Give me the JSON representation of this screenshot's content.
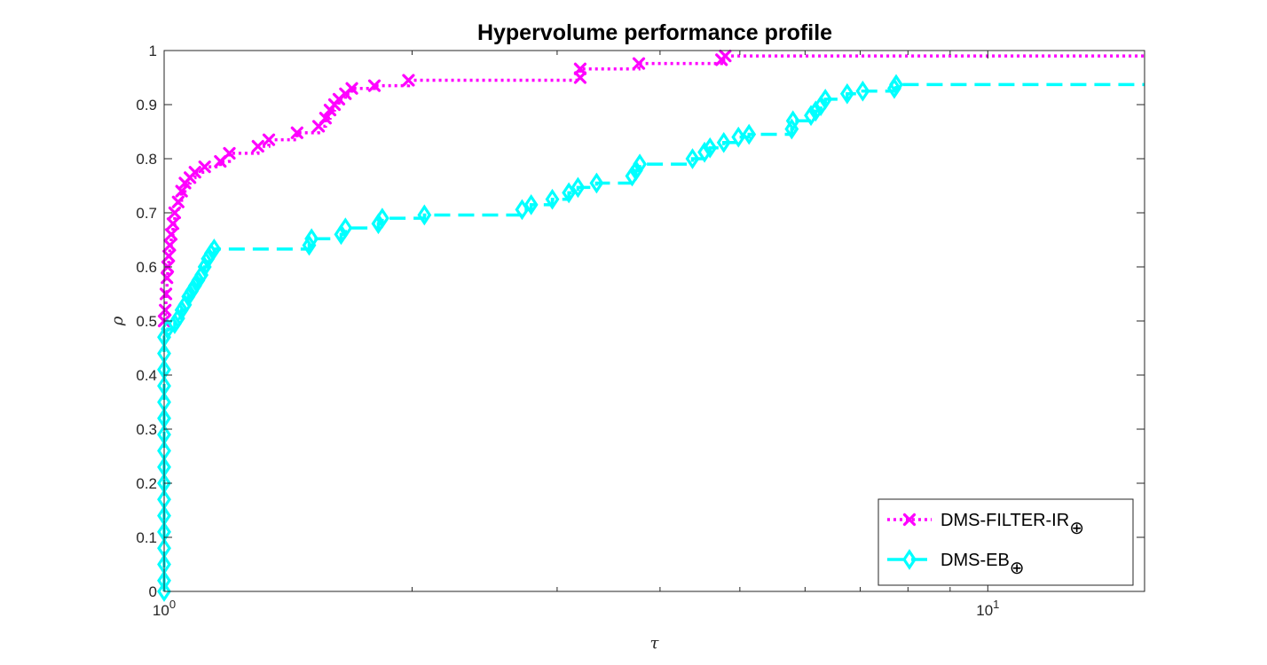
{
  "chart_data": {
    "type": "line",
    "title": "Hypervolume performance profile",
    "xlabel": "τ",
    "ylabel": "ρ",
    "x_scale": "log",
    "xlim": [
      1,
      15.5
    ],
    "ylim": [
      0,
      1
    ],
    "x_ticks": [
      {
        "value": 1,
        "base": "10",
        "exp": "0"
      },
      {
        "value": 10,
        "base": "10",
        "exp": "1"
      }
    ],
    "y_ticks": [
      0,
      0.1,
      0.2,
      0.3,
      0.4,
      0.5,
      0.6,
      0.7,
      0.8,
      0.9,
      1
    ],
    "y_tick_labels": [
      "0",
      "0.1",
      "0.2",
      "0.3",
      "0.4",
      "0.5",
      "0.6",
      "0.7",
      "0.8",
      "0.9",
      "1"
    ],
    "grid": false,
    "legend_position": "bottom-right",
    "series": [
      {
        "name": "DMS-FILTER-IR",
        "legend_subscript": "⊕",
        "color": "#FF00FF",
        "line_style": "dotted",
        "marker": "x",
        "points": [
          [
            1.0,
            0.5
          ],
          [
            1.003,
            0.52
          ],
          [
            1.005,
            0.55
          ],
          [
            1.008,
            0.58
          ],
          [
            1.01,
            0.6
          ],
          [
            1.013,
            0.62
          ],
          [
            1.016,
            0.64
          ],
          [
            1.02,
            0.66
          ],
          [
            1.025,
            0.68
          ],
          [
            1.03,
            0.7
          ],
          [
            1.04,
            0.72
          ],
          [
            1.05,
            0.74
          ],
          [
            1.06,
            0.755
          ],
          [
            1.075,
            0.765
          ],
          [
            1.09,
            0.775
          ],
          [
            1.12,
            0.785
          ],
          [
            1.17,
            0.795
          ],
          [
            1.2,
            0.81
          ],
          [
            1.3,
            0.823
          ],
          [
            1.34,
            0.835
          ],
          [
            1.45,
            0.848
          ],
          [
            1.54,
            0.86
          ],
          [
            1.57,
            0.875
          ],
          [
            1.59,
            0.89
          ],
          [
            1.61,
            0.9
          ],
          [
            1.63,
            0.91
          ],
          [
            1.66,
            0.92
          ],
          [
            1.69,
            0.93
          ],
          [
            1.8,
            0.935
          ],
          [
            1.98,
            0.945
          ],
          [
            3.2,
            0.95
          ],
          [
            3.2,
            0.966
          ],
          [
            3.77,
            0.976
          ],
          [
            4.75,
            0.983
          ],
          [
            4.8,
            0.99
          ],
          [
            15.5,
            0.99
          ]
        ]
      },
      {
        "name": "DMS-EB",
        "legend_subscript": "⊕",
        "color": "#00FFFF",
        "line_style": "dashed",
        "marker": "diamond",
        "points": [
          [
            1.0,
            0.0
          ],
          [
            1.0,
            0.02
          ],
          [
            1.0,
            0.05
          ],
          [
            1.0,
            0.08
          ],
          [
            1.0,
            0.11
          ],
          [
            1.0,
            0.14
          ],
          [
            1.0,
            0.17
          ],
          [
            1.0,
            0.2
          ],
          [
            1.0,
            0.23
          ],
          [
            1.0,
            0.26
          ],
          [
            1.0,
            0.29
          ],
          [
            1.0,
            0.32
          ],
          [
            1.0,
            0.35
          ],
          [
            1.0,
            0.38
          ],
          [
            1.0,
            0.41
          ],
          [
            1.0,
            0.44
          ],
          [
            1.0,
            0.47
          ],
          [
            1.01,
            0.485
          ],
          [
            1.03,
            0.495
          ],
          [
            1.04,
            0.505
          ],
          [
            1.05,
            0.52
          ],
          [
            1.06,
            0.53
          ],
          [
            1.07,
            0.545
          ],
          [
            1.08,
            0.555
          ],
          [
            1.09,
            0.565
          ],
          [
            1.1,
            0.575
          ],
          [
            1.11,
            0.585
          ],
          [
            1.12,
            0.6
          ],
          [
            1.13,
            0.615
          ],
          [
            1.14,
            0.625
          ],
          [
            1.15,
            0.633
          ],
          [
            1.5,
            0.64
          ],
          [
            1.51,
            0.652
          ],
          [
            1.64,
            0.66
          ],
          [
            1.66,
            0.672
          ],
          [
            1.82,
            0.68
          ],
          [
            1.84,
            0.69
          ],
          [
            2.07,
            0.696
          ],
          [
            2.72,
            0.706
          ],
          [
            2.79,
            0.715
          ],
          [
            2.96,
            0.725
          ],
          [
            3.1,
            0.737
          ],
          [
            3.18,
            0.747
          ],
          [
            3.35,
            0.755
          ],
          [
            3.7,
            0.768
          ],
          [
            3.74,
            0.778
          ],
          [
            3.78,
            0.79
          ],
          [
            4.38,
            0.8
          ],
          [
            4.53,
            0.812
          ],
          [
            4.6,
            0.82
          ],
          [
            4.78,
            0.83
          ],
          [
            4.98,
            0.84
          ],
          [
            5.13,
            0.845
          ],
          [
            5.78,
            0.855
          ],
          [
            5.8,
            0.87
          ],
          [
            6.1,
            0.88
          ],
          [
            6.18,
            0.888
          ],
          [
            6.27,
            0.898
          ],
          [
            6.35,
            0.91
          ],
          [
            6.75,
            0.92
          ],
          [
            7.05,
            0.925
          ],
          [
            7.7,
            0.93
          ],
          [
            7.74,
            0.937
          ],
          [
            15.5,
            0.937
          ]
        ]
      }
    ]
  }
}
